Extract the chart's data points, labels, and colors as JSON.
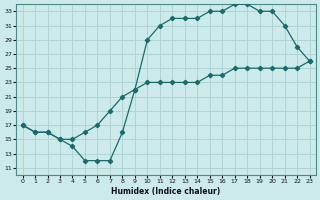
{
  "xlabel": "Humidex (Indice chaleur)",
  "bg_color": "#cceaea",
  "line_color": "#1a6b6b",
  "grid_color": "#b0d4d4",
  "xlim": [
    -0.5,
    23.5
  ],
  "ylim": [
    10,
    34
  ],
  "xticks": [
    0,
    1,
    2,
    3,
    4,
    5,
    6,
    7,
    8,
    9,
    10,
    11,
    12,
    13,
    14,
    15,
    16,
    17,
    18,
    19,
    20,
    21,
    22,
    23
  ],
  "yticks": [
    11,
    13,
    15,
    17,
    19,
    21,
    23,
    25,
    27,
    29,
    31,
    33
  ],
  "line1_x": [
    0,
    1,
    2,
    3,
    4,
    5,
    6,
    7,
    8,
    9,
    10,
    11,
    12,
    13,
    14,
    15,
    16,
    17,
    18,
    19,
    20,
    21,
    22,
    23
  ],
  "line1_y": [
    17,
    16,
    16,
    15,
    14,
    12,
    12,
    12,
    16,
    22,
    29,
    31,
    32,
    32,
    32,
    33,
    33,
    34,
    34,
    33,
    33,
    31,
    28,
    26
  ],
  "line2_x": [
    0,
    1,
    2,
    3,
    4,
    5,
    6,
    7,
    8,
    9,
    10,
    11,
    12,
    13,
    14,
    15,
    16,
    17,
    18,
    19,
    20,
    21,
    22,
    23
  ],
  "line2_y": [
    17,
    16,
    16,
    15,
    15,
    16,
    17,
    19,
    21,
    22,
    23,
    23,
    23,
    23,
    23,
    24,
    24,
    25,
    25,
    25,
    25,
    25,
    25,
    26
  ]
}
